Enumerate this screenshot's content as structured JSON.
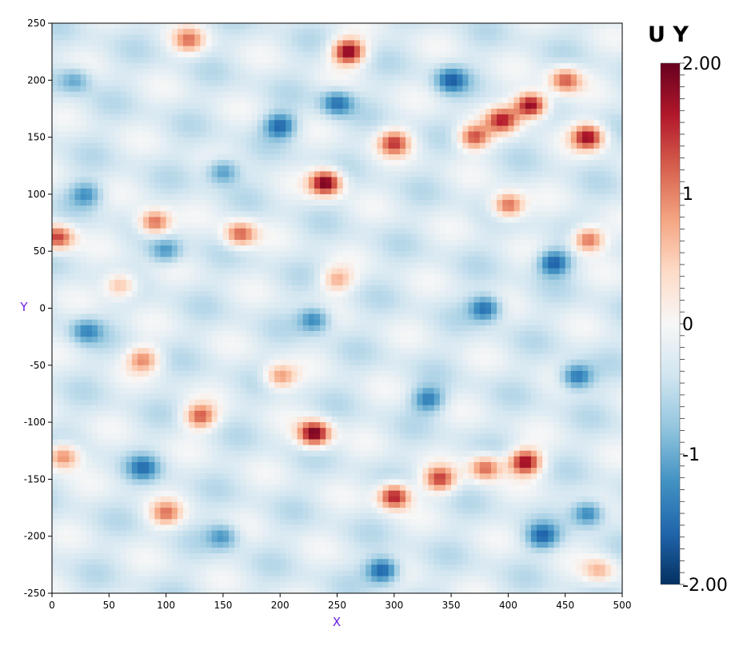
{
  "chart_data": {
    "type": "heatmap",
    "title": "",
    "xlabel": "X",
    "ylabel": "Y",
    "xlim": [
      0,
      500
    ],
    "ylim": [
      -250,
      250
    ],
    "xticks": [
      "0",
      "50",
      "100",
      "150",
      "200",
      "250",
      "300",
      "350",
      "400",
      "450",
      "500"
    ],
    "yticks": [
      "250",
      "200",
      "150",
      "100",
      "50",
      "0",
      "-50",
      "-100",
      "-150",
      "-200",
      "-250"
    ],
    "colorbar": {
      "title": "U Y",
      "range": [
        -2.0,
        2.0
      ],
      "labels": [
        {
          "value": 2.0,
          "text": "2.00"
        },
        {
          "value": 1.0,
          "text": "1"
        },
        {
          "value": 0.0,
          "text": "0"
        },
        {
          "value": -1.0,
          "text": "-1"
        },
        {
          "value": -2.0,
          "text": "-2.00"
        }
      ],
      "colormap_stops": [
        "#67001f",
        "#b2182b",
        "#d6604d",
        "#f4a582",
        "#fddbc7",
        "#f7f7f7",
        "#d1e5f0",
        "#92c5de",
        "#4393c3",
        "#2166ac",
        "#053061"
      ]
    },
    "background_value": -0.3,
    "features": [
      {
        "x": 240,
        "y": 110,
        "value": 2.0
      },
      {
        "x": 230,
        "y": -110,
        "value": 2.0
      },
      {
        "x": 260,
        "y": 225,
        "value": 1.9
      },
      {
        "x": 420,
        "y": 178,
        "value": 2.0
      },
      {
        "x": 415,
        "y": -135,
        "value": 1.8
      },
      {
        "x": 300,
        "y": -165,
        "value": 1.7
      },
      {
        "x": 5,
        "y": 62,
        "value": 1.4
      },
      {
        "x": 90,
        "y": 75,
        "value": 1.3
      },
      {
        "x": 165,
        "y": 65,
        "value": 1.2
      },
      {
        "x": 300,
        "y": 145,
        "value": 1.3
      },
      {
        "x": 130,
        "y": -95,
        "value": 1.2
      },
      {
        "x": 10,
        "y": -130,
        "value": 1.1
      },
      {
        "x": 470,
        "y": 150,
        "value": 1.7
      },
      {
        "x": 395,
        "y": 165,
        "value": 1.4
      },
      {
        "x": 400,
        "y": 90,
        "value": 1.3
      },
      {
        "x": 470,
        "y": 60,
        "value": 1.3
      },
      {
        "x": 450,
        "y": 200,
        "value": 1.2
      },
      {
        "x": 340,
        "y": -150,
        "value": 1.3
      },
      {
        "x": 370,
        "y": 150,
        "value": 1.3
      },
      {
        "x": 380,
        "y": -140,
        "value": 1.2
      },
      {
        "x": 100,
        "y": -180,
        "value": 0.9
      },
      {
        "x": 120,
        "y": 235,
        "value": 0.9
      },
      {
        "x": 200,
        "y": -60,
        "value": 0.9
      },
      {
        "x": 60,
        "y": 20,
        "value": 0.8
      },
      {
        "x": 80,
        "y": -45,
        "value": 0.9
      },
      {
        "x": 250,
        "y": 25,
        "value": 0.7
      },
      {
        "x": 200,
        "y": 160,
        "value": -1.6
      },
      {
        "x": 150,
        "y": 120,
        "value": -1.3
      },
      {
        "x": 100,
        "y": 50,
        "value": -1.2
      },
      {
        "x": 30,
        "y": 100,
        "value": -1.2
      },
      {
        "x": 30,
        "y": -20,
        "value": -1.2
      },
      {
        "x": 80,
        "y": -140,
        "value": -1.3
      },
      {
        "x": 150,
        "y": -200,
        "value": -1.2
      },
      {
        "x": 250,
        "y": 180,
        "value": -1.5
      },
      {
        "x": 380,
        "y": 0,
        "value": -1.6
      },
      {
        "x": 440,
        "y": 40,
        "value": -1.7
      },
      {
        "x": 350,
        "y": 200,
        "value": -1.5
      },
      {
        "x": 330,
        "y": -80,
        "value": -1.4
      },
      {
        "x": 460,
        "y": -60,
        "value": -1.6
      },
      {
        "x": 290,
        "y": -230,
        "value": -1.8
      },
      {
        "x": 430,
        "y": -200,
        "value": -1.5
      },
      {
        "x": 230,
        "y": -10,
        "value": -1.4
      },
      {
        "x": 20,
        "y": 200,
        "value": -1.1
      },
      {
        "x": 470,
        "y": -180,
        "value": -1.5
      },
      {
        "x": 480,
        "y": -230,
        "value": 0.6
      }
    ]
  }
}
